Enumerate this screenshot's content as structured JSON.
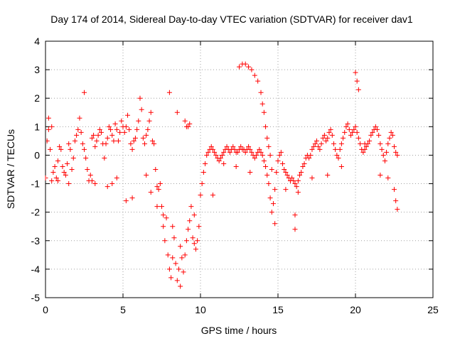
{
  "chart_data": {
    "type": "scatter",
    "title": "Day 174 of 2014, Sidereal Day-to-day VTEC variation (SDTVAR) for receiver dav1",
    "xlabel": "GPS time / hours",
    "ylabel": "SDTVAR / TECUs",
    "xlim": [
      0,
      25
    ],
    "ylim": [
      -5,
      4
    ],
    "x_ticks": [
      0,
      5,
      10,
      15,
      20,
      25
    ],
    "y_ticks": [
      -5,
      -4,
      -3,
      -2,
      -1,
      0,
      1,
      2,
      3,
      4
    ],
    "x_tick_labels": [
      "0",
      "5",
      "10",
      "15",
      "20",
      "25"
    ],
    "y_tick_labels": [
      "-5",
      "-4",
      "-3",
      "-2",
      "-1",
      "0",
      "1",
      "2",
      "3",
      "4"
    ],
    "grid": true,
    "marker": "+",
    "color": "#ff0000",
    "series": [
      {
        "name": "dav1",
        "x": [
          0.0,
          0.1,
          0.2,
          0.3,
          0.4,
          0.5,
          0.6,
          0.7,
          0.8,
          0.9,
          1.0,
          1.1,
          1.2,
          1.3,
          1.4,
          1.5,
          1.6,
          1.7,
          1.8,
          1.9,
          2.0,
          2.1,
          2.2,
          2.3,
          2.4,
          2.5,
          2.6,
          2.7,
          2.8,
          2.9,
          3.0,
          3.1,
          3.2,
          3.3,
          3.4,
          3.5,
          3.6,
          3.7,
          3.8,
          3.9,
          4.0,
          4.1,
          4.2,
          4.3,
          4.4,
          4.5,
          4.6,
          4.7,
          4.8,
          4.9,
          5.0,
          5.1,
          5.2,
          5.3,
          5.4,
          5.5,
          5.6,
          5.7,
          5.8,
          5.9,
          6.0,
          6.1,
          6.2,
          6.3,
          6.4,
          6.5,
          6.6,
          6.7,
          6.8,
          6.9,
          7.0,
          7.1,
          7.2,
          7.3,
          7.4,
          7.5,
          7.6,
          7.7,
          7.8,
          7.9,
          8.0,
          8.1,
          8.2,
          8.3,
          8.4,
          8.5,
          8.6,
          8.7,
          8.8,
          8.9,
          9.0,
          9.1,
          9.2,
          9.3,
          9.4,
          9.5,
          9.6,
          9.7,
          9.8,
          9.9,
          10.0,
          10.1,
          10.2,
          10.3,
          10.4,
          10.5,
          10.6,
          10.7,
          10.8,
          10.9,
          11.0,
          11.1,
          11.2,
          11.3,
          11.4,
          11.5,
          11.6,
          11.7,
          11.8,
          11.9,
          12.0,
          12.1,
          12.2,
          12.3,
          12.4,
          12.5,
          12.6,
          12.7,
          12.8,
          12.9,
          13.0,
          13.1,
          13.2,
          13.3,
          13.4,
          13.5,
          13.6,
          13.7,
          13.8,
          13.9,
          14.0,
          14.1,
          14.2,
          14.3,
          14.4,
          14.5,
          14.6,
          14.7,
          14.8,
          14.9,
          15.0,
          15.1,
          15.2,
          15.3,
          15.4,
          15.5,
          15.6,
          15.7,
          15.8,
          15.9,
          16.0,
          16.1,
          16.2,
          16.3,
          16.4,
          16.5,
          16.6,
          16.7,
          16.8,
          16.9,
          17.0,
          17.1,
          17.2,
          17.3,
          17.4,
          17.5,
          17.6,
          17.7,
          17.8,
          17.9,
          18.0,
          18.1,
          18.2,
          18.3,
          18.4,
          18.5,
          18.6,
          18.7,
          18.8,
          18.9,
          19.0,
          19.1,
          19.2,
          19.3,
          19.4,
          19.5,
          19.6,
          19.7,
          19.8,
          19.9,
          20.0,
          20.1,
          20.2,
          20.3,
          20.4,
          20.5,
          20.6,
          20.7,
          20.8,
          20.9,
          21.0,
          21.1,
          21.2,
          21.3,
          21.4,
          21.5,
          21.6,
          21.7,
          21.8,
          21.9,
          22.0,
          22.1,
          22.2,
          22.3,
          22.4,
          22.5,
          22.6,
          22.7,
          12.5,
          12.7,
          12.9,
          13.1,
          13.3,
          13.5,
          13.7,
          13.9,
          14.0,
          14.1,
          14.2,
          14.3,
          14.4,
          14.5,
          14.6,
          2.5,
          8.0,
          8.5,
          9.0,
          9.1,
          9.2,
          9.3,
          20.0,
          20.1,
          20.2,
          16.1,
          16.1,
          22.5,
          22.6,
          22.7,
          0.2,
          0.4,
          0.8,
          1.5,
          3.0,
          3.2,
          4.0,
          4.3,
          4.6,
          5.2,
          5.6,
          6.5,
          6.8,
          7.2,
          7.6,
          8.2,
          8.7,
          9.6,
          10.8,
          11.5,
          12.3,
          13.2,
          14.8,
          15.5,
          16.3,
          17.2,
          18.2,
          19.1,
          20.6,
          21.6,
          22.1
        ],
        "y": [
          -0.8,
          0.5,
          0.9,
          0.2,
          -0.9,
          -0.6,
          -0.4,
          -0.8,
          -0.2,
          0.3,
          0.2,
          -0.4,
          -0.6,
          -0.7,
          -0.3,
          0.4,
          0.2,
          -0.5,
          -0.1,
          0.5,
          0.7,
          0.9,
          1.3,
          0.8,
          0.4,
          0.2,
          -0.1,
          -0.5,
          -0.9,
          -0.7,
          0.6,
          0.7,
          0.3,
          0.5,
          0.7,
          0.9,
          0.8,
          0.4,
          -0.1,
          0.4,
          0.6,
          1.0,
          0.9,
          0.7,
          0.5,
          1.1,
          0.9,
          0.5,
          0.8,
          1.2,
          1.0,
          0.8,
          1.0,
          1.4,
          0.9,
          0.4,
          0.2,
          0.5,
          0.6,
          0.9,
          1.2,
          2.0,
          1.6,
          0.6,
          0.4,
          0.7,
          0.9,
          1.2,
          1.5,
          0.5,
          0.4,
          -0.5,
          -1.8,
          -1.2,
          -1.0,
          -1.8,
          -2.5,
          -3.0,
          -2.2,
          -3.5,
          -4.0,
          -4.3,
          -3.6,
          -2.9,
          -3.8,
          -4.4,
          -4.0,
          -3.2,
          -3.6,
          -4.1,
          -3.5,
          -3.0,
          -2.6,
          -2.3,
          -1.8,
          -2.9,
          -3.1,
          -3.3,
          -3.0,
          -2.5,
          -1.4,
          -1.0,
          -0.6,
          -0.3,
          0.0,
          0.1,
          0.2,
          0.3,
          0.2,
          0.1,
          0.0,
          -0.1,
          -0.2,
          -0.1,
          0.0,
          0.1,
          0.2,
          0.3,
          0.2,
          0.1,
          0.2,
          0.3,
          0.2,
          0.1,
          0.1,
          0.2,
          0.3,
          0.2,
          0.2,
          0.1,
          0.2,
          0.3,
          0.2,
          0.1,
          0.0,
          -0.1,
          0.0,
          0.1,
          0.2,
          0.1,
          0.0,
          -0.2,
          -0.4,
          -0.7,
          -1.0,
          -1.5,
          -2.0,
          -1.7,
          -1.2,
          -0.6,
          -0.2,
          0.0,
          0.1,
          -0.3,
          -0.5,
          -0.6,
          -0.7,
          -0.8,
          -0.9,
          -0.8,
          -0.9,
          -1.0,
          -1.1,
          -0.9,
          -0.7,
          -0.6,
          -0.4,
          -0.3,
          -0.1,
          0.0,
          -0.1,
          0.0,
          0.2,
          0.3,
          0.4,
          0.5,
          0.3,
          0.2,
          0.4,
          0.6,
          0.7,
          0.5,
          0.6,
          0.8,
          0.9,
          0.7,
          0.4,
          0.2,
          0.0,
          -0.1,
          0.2,
          0.4,
          0.6,
          0.8,
          1.0,
          1.1,
          0.9,
          0.7,
          0.8,
          0.9,
          1.0,
          0.8,
          0.6,
          0.4,
          0.2,
          0.1,
          0.2,
          0.3,
          0.4,
          0.5,
          0.7,
          0.8,
          0.9,
          1.0,
          0.9,
          0.7,
          0.4,
          0.2,
          0.0,
          -0.2,
          0.1,
          0.4,
          0.6,
          0.8,
          0.7,
          0.3,
          0.1,
          0.0,
          3.1,
          3.2,
          3.2,
          3.1,
          3.0,
          2.8,
          2.6,
          2.2,
          1.8,
          1.5,
          1.0,
          0.6,
          0.3,
          0.0,
          -0.5,
          2.2,
          2.2,
          1.5,
          1.2,
          1.0,
          1.0,
          1.1,
          2.9,
          2.6,
          2.3,
          -2.1,
          -2.6,
          -1.2,
          -1.6,
          -1.9,
          1.3,
          1.0,
          -0.9,
          -1.0,
          -0.9,
          -1.0,
          -1.1,
          -1.0,
          -0.8,
          -1.6,
          -1.5,
          -0.7,
          -1.3,
          -1.1,
          -2.1,
          -2.5,
          -4.6,
          -2.1,
          -1.4,
          -0.3,
          -0.4,
          -0.6,
          -2.4,
          -1.2,
          -1.3,
          -0.8,
          -0.7,
          -0.4,
          0.4,
          -0.7,
          -0.8
        ]
      }
    ]
  }
}
